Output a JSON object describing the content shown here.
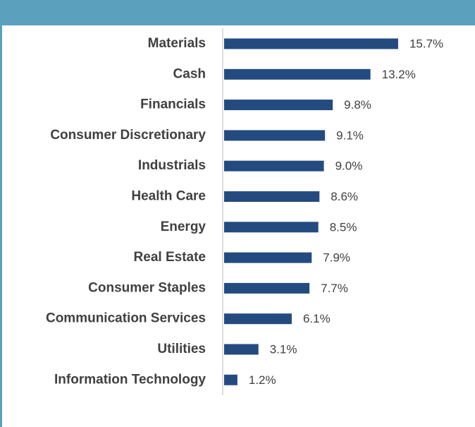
{
  "chart_data": {
    "type": "bar",
    "orientation": "horizontal",
    "categories": [
      "Materials",
      "Cash",
      "Financials",
      "Consumer Discretionary",
      "Industrials",
      "Health Care",
      "Energy",
      "Real Estate",
      "Consumer Staples",
      "Communication Services",
      "Utilities",
      "Information Technology"
    ],
    "values": [
      15.7,
      13.2,
      9.8,
      9.1,
      9.0,
      8.6,
      8.5,
      7.9,
      7.7,
      6.1,
      3.1,
      1.2
    ],
    "value_labels": [
      "15.7%",
      "13.2%",
      "9.8%",
      "9.1%",
      "9.0%",
      "8.6%",
      "8.5%",
      "7.9%",
      "7.7%",
      "6.1%",
      "3.1%",
      "1.2%"
    ],
    "color": "#244b80"
  }
}
